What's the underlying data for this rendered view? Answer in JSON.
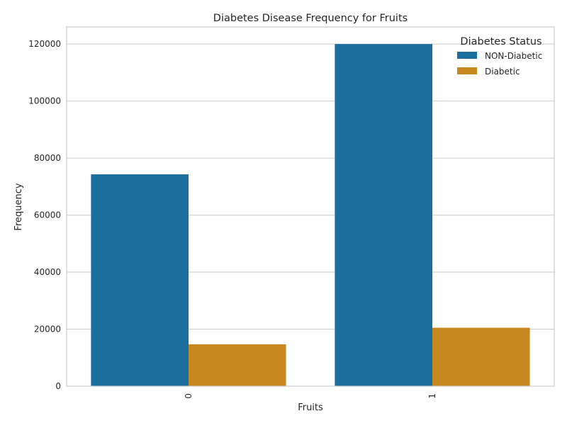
{
  "chart_data": {
    "type": "bar",
    "title": "Diabetes Disease Frequency for Fruits",
    "xlabel": "Fruits",
    "ylabel": "Frequency",
    "categories": [
      "0",
      "1"
    ],
    "series": [
      {
        "name": "NON-Diabetic",
        "color": "#1a6f9f",
        "values": [
          74300,
          120000
        ]
      },
      {
        "name": "Diabetic",
        "color": "#c6881f",
        "values": [
          14700,
          20500
        ]
      }
    ],
    "ylim": [
      0,
      126000
    ],
    "yticks": [
      0,
      20000,
      40000,
      60000,
      80000,
      100000,
      120000
    ],
    "legend": {
      "title": "Diabetes Status",
      "placement": "top-right"
    },
    "grid": "y",
    "xtick_rotation": 90
  }
}
